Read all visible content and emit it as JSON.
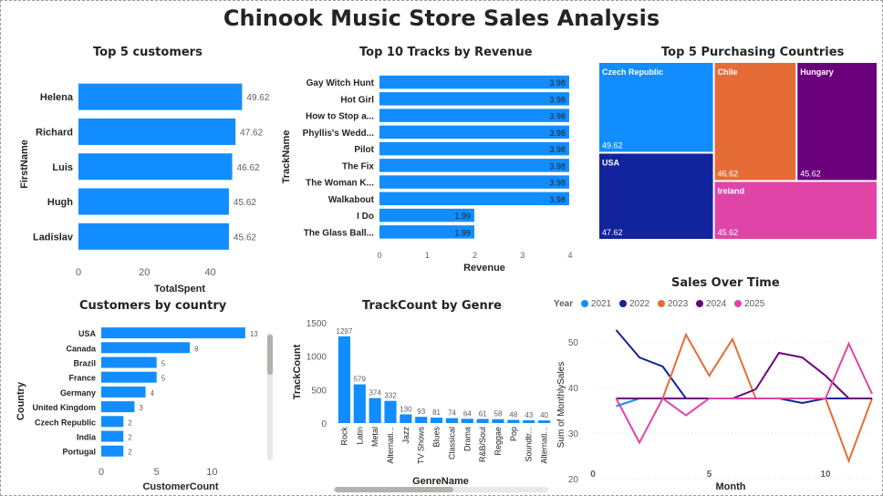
{
  "title": "Chinook Music Store Sales Analysis",
  "colors": {
    "bar": "#118DFF",
    "label": "#252423",
    "axis": "#605e5c"
  },
  "chart_data": [
    {
      "id": "top-customers",
      "type": "bar",
      "orientation": "horizontal",
      "title": "Top 5 customers",
      "xlabel": "TotalSpent",
      "ylabel": "FirstName",
      "categories": [
        "Helena",
        "Richard",
        "Luis",
        "Hugh",
        "Ladislav"
      ],
      "values": [
        49.62,
        47.62,
        46.62,
        45.62,
        45.62
      ],
      "value_labels": [
        "49.62",
        "47.62",
        "46.62",
        "45.62",
        "45.62"
      ],
      "xticks": [
        "0",
        "20",
        "40"
      ],
      "xlim": [
        0,
        52
      ]
    },
    {
      "id": "top-tracks",
      "type": "bar",
      "orientation": "horizontal",
      "title": "Top 10 Tracks by Revenue",
      "xlabel": "Revenue",
      "ylabel": "TrackName",
      "categories": [
        "Gay Witch Hunt",
        "Hot Girl",
        "How to Stop a...",
        "Phyllis's Wedd...",
        "Pilot",
        "The Fix",
        "The Woman K...",
        "Walkabout",
        "I Do",
        "The Glass Ball..."
      ],
      "values": [
        3.98,
        3.98,
        3.98,
        3.98,
        3.98,
        3.98,
        3.98,
        3.98,
        1.99,
        1.99
      ],
      "value_labels": [
        "3.98",
        "3.98",
        "3.98",
        "3.98",
        "3.98",
        "3.98",
        "3.98",
        "3.98",
        "1.99",
        "1.99"
      ],
      "xticks": [
        "0",
        "1",
        "2",
        "3",
        "4"
      ],
      "xlim": [
        0,
        4
      ]
    },
    {
      "id": "top-countries",
      "type": "treemap",
      "title": "Top 5 Purchasing Countries",
      "items": [
        {
          "name": "Czech Republic",
          "value": 49.62,
          "label": "49.62",
          "color": "#118DFF"
        },
        {
          "name": "USA",
          "value": 47.62,
          "label": "47.62",
          "color": "#12239E"
        },
        {
          "name": "Chile",
          "value": 46.62,
          "label": "46.62",
          "color": "#E66C37"
        },
        {
          "name": "Hungary",
          "value": 45.62,
          "label": "45.62",
          "color": "#6B007B"
        },
        {
          "name": "Ireland",
          "value": 45.62,
          "label": "45.62",
          "color": "#E044A7"
        }
      ]
    },
    {
      "id": "customers-by-country",
      "type": "bar",
      "orientation": "horizontal",
      "title": "Customers by country",
      "xlabel": "CustomerCount",
      "ylabel": "Country",
      "categories": [
        "USA",
        "Canada",
        "Brazil",
        "France",
        "Germany",
        "United Kingdom",
        "Czech Republic",
        "India",
        "Portugal"
      ],
      "values": [
        13,
        8,
        5,
        5,
        4,
        3,
        2,
        2,
        2
      ],
      "value_labels": [
        "13",
        "8",
        "5",
        "5",
        "4",
        "3",
        "2",
        "2",
        "2"
      ],
      "xticks": [
        "0",
        "5",
        "10"
      ],
      "xlim": [
        0,
        14
      ]
    },
    {
      "id": "trackcount-by-genre",
      "type": "bar",
      "orientation": "vertical",
      "title": "TrackCount by Genre",
      "xlabel": "GenreName",
      "ylabel": "TrackCount",
      "categories": [
        "Rock",
        "Latin",
        "Metal",
        "Alternati...",
        "Jazz",
        "TV Shows",
        "Blues",
        "Classical",
        "Drama",
        "R&B/Soul",
        "Reggae",
        "Pop",
        "Soundtr...",
        "Alternati..."
      ],
      "values": [
        1297,
        579,
        374,
        332,
        130,
        93,
        81,
        74,
        64,
        61,
        58,
        48,
        43,
        40
      ],
      "value_labels": [
        "1297",
        "579",
        "374",
        "332",
        "130",
        "93",
        "81",
        "74",
        "64",
        "61",
        "58",
        "48",
        "43",
        "40"
      ],
      "yticks": [
        "0",
        "500",
        "1000",
        "1500"
      ],
      "ylim": [
        0,
        1500
      ]
    },
    {
      "id": "sales-over-time",
      "type": "line",
      "title": "Sales Over Time",
      "xlabel": "Month",
      "ylabel": "Sum of MonthlySales",
      "legend_title": "Year",
      "xticks": [
        "0",
        "5",
        "10"
      ],
      "yticks": [
        "20",
        "30",
        "40",
        "50"
      ],
      "xlim": [
        0,
        12
      ],
      "ylim": [
        20,
        55
      ],
      "series": [
        {
          "name": "2021",
          "color": "#118DFF",
          "x": [
            1,
            2,
            3,
            4,
            5,
            6,
            7,
            8,
            9,
            10,
            11,
            12
          ],
          "y": [
            35.9,
            37.6,
            37.6,
            37.6,
            37.6,
            37.6,
            37.6,
            37.6,
            37.6,
            37.6,
            37.6,
            37.6
          ]
        },
        {
          "name": "2022",
          "color": "#12239E",
          "x": [
            1,
            2,
            3,
            4,
            5,
            6,
            7,
            8,
            9,
            10,
            11,
            12
          ],
          "y": [
            52.6,
            46.6,
            44.6,
            37.6,
            37.6,
            37.6,
            37.6,
            37.6,
            36.6,
            37.6,
            37.6,
            37.6
          ]
        },
        {
          "name": "2023",
          "color": "#E66C37",
          "x": [
            1,
            2,
            3,
            4,
            5,
            6,
            7,
            8,
            9,
            10,
            11,
            12
          ],
          "y": [
            37.6,
            37.6,
            37.6,
            51.6,
            42.6,
            50.6,
            37.6,
            37.6,
            37.6,
            37.6,
            23.9,
            37.6
          ]
        },
        {
          "name": "2024",
          "color": "#6B007B",
          "x": [
            1,
            2,
            3,
            4,
            5,
            6,
            7,
            8,
            9,
            10,
            11,
            12
          ],
          "y": [
            37.6,
            37.6,
            37.6,
            37.6,
            37.6,
            37.6,
            39.6,
            47.6,
            46.6,
            42.6,
            37.6,
            37.6
          ]
        },
        {
          "name": "2025",
          "color": "#E044A7",
          "x": [
            1,
            2,
            3,
            4,
            5,
            6,
            7,
            8,
            9,
            10,
            11,
            12
          ],
          "y": [
            37.6,
            27.9,
            37.6,
            33.9,
            37.6,
            37.6,
            37.6,
            37.6,
            37.6,
            37.6,
            49.6,
            38.6
          ]
        }
      ]
    }
  ]
}
